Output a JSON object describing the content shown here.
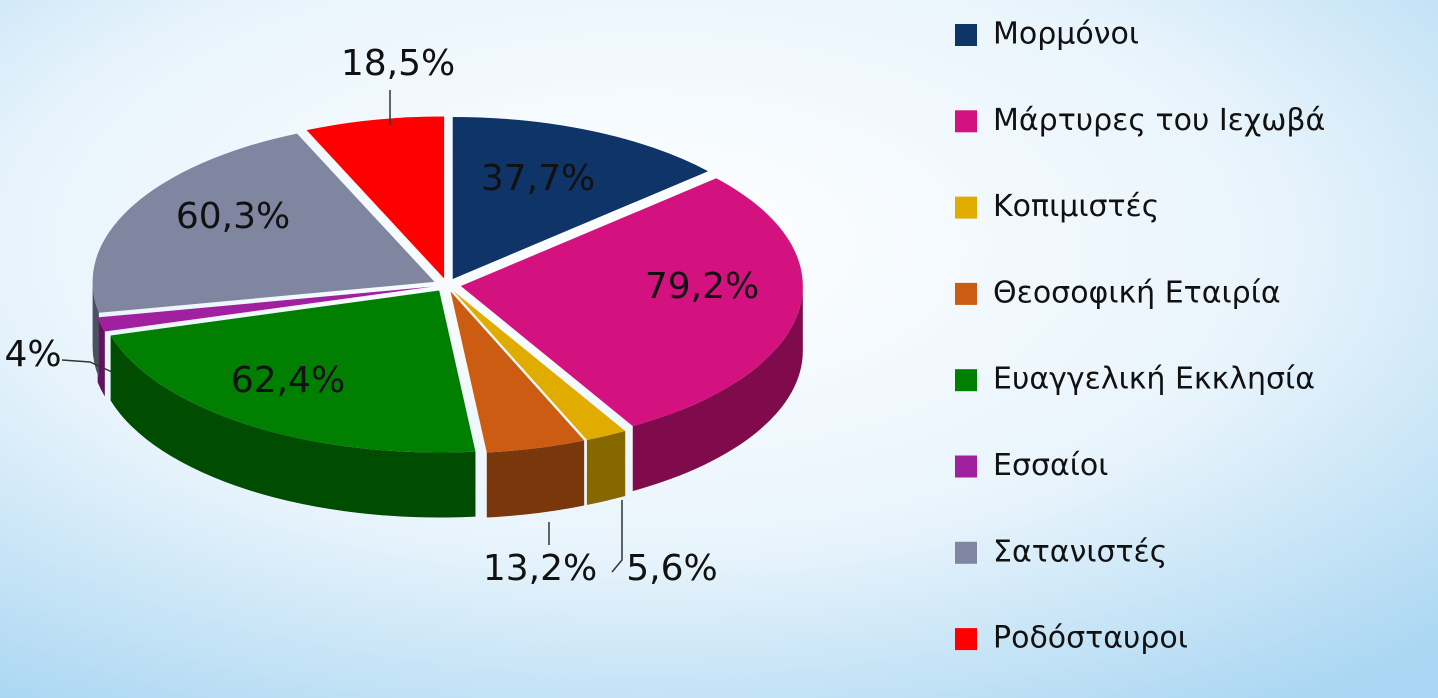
{
  "chart_data": {
    "type": "pie",
    "categories": [
      "Μορμόνοι",
      "Μάρτυρες του Ιεχωβά",
      "Κοπιμιστές",
      "Θεοσοφική Εταιρία",
      "Ευαγγελική Εκκλησία",
      "Εσσαίοι",
      "Σατανιστές",
      "Ροδόσταυροι"
    ],
    "values": [
      37.7,
      79.2,
      5.6,
      13.2,
      62.4,
      4,
      60.3,
      18.5
    ],
    "value_labels": [
      "37,7%",
      "79,2%",
      "5,6%",
      "13,2%",
      "62,4%",
      "4%",
      "60,3%",
      "18,5%"
    ],
    "colors": [
      "#0e3468",
      "#d4127f",
      "#e0ac00",
      "#cc5c12",
      "#007f00",
      "#a020a0",
      "#8086a0",
      "#ff0000"
    ],
    "legend": "right"
  }
}
